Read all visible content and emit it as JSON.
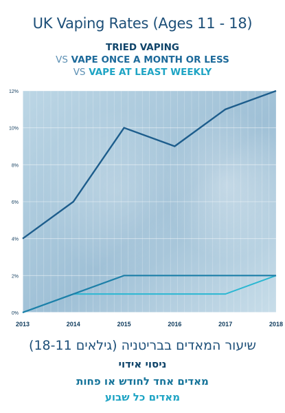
{
  "header": {
    "title": "UK Vaping Rates (Ages 11 - 18)",
    "line1": "TRIED VAPING",
    "vs": "VS",
    "line2": "VAPE ONCE A MONTH OR LESS",
    "line3": "VAPE AT LEAST WEEKLY"
  },
  "hebrew": {
    "title": "שיעור המאדים בבריטניה (גילאים 18-11)",
    "line1": "ניסוי אידוי",
    "line2": "מאדים אחד לחודש או פחות",
    "line3": "מאדים כל שבוע"
  },
  "colors": {
    "tried": "#1d5d8c",
    "monthly": "#1d7fa8",
    "weekly": "#2bb7d2",
    "plot_bg": "#a9c9dc",
    "axis_text": "#0e3a5c"
  },
  "chart_data": {
    "type": "line",
    "x": [
      "2013",
      "2014",
      "2015",
      "2016",
      "2017",
      "2018"
    ],
    "ylim": [
      0,
      12
    ],
    "yticks": [
      "0%",
      "2%",
      "4%",
      "6%",
      "8%",
      "10%",
      "12%"
    ],
    "grid": true,
    "series": [
      {
        "name": "TRIED VAPING",
        "values": [
          4,
          6,
          10,
          9,
          11,
          12
        ]
      },
      {
        "name": "VAPE ONCE A MONTH OR LESS",
        "values": [
          0,
          1,
          2,
          2,
          2,
          2
        ]
      },
      {
        "name": "VAPE AT LEAST WEEKLY",
        "values": [
          0,
          1,
          1,
          1,
          1,
          2
        ]
      }
    ]
  }
}
